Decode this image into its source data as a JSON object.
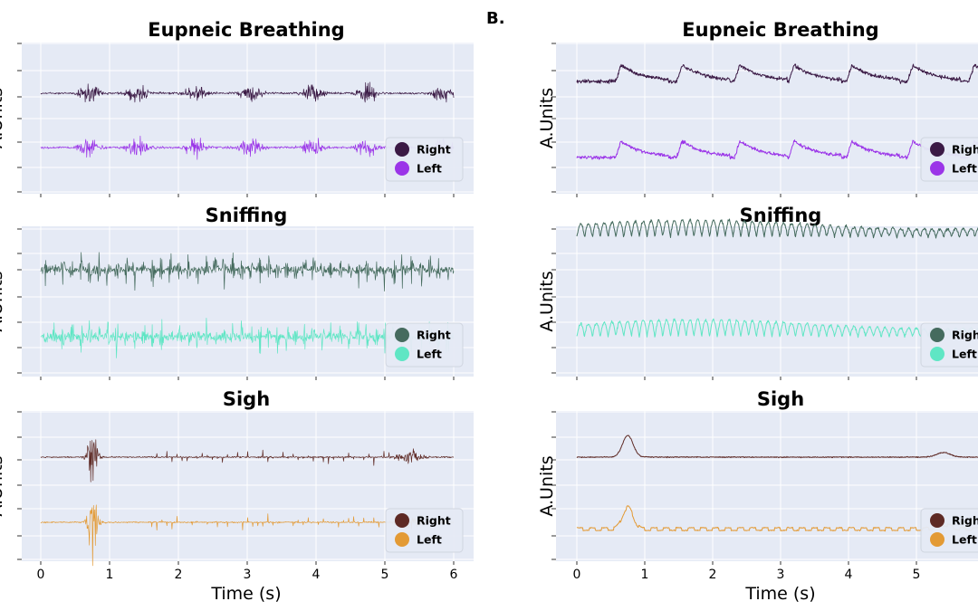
{
  "panel_labels": [
    "B."
  ],
  "chart_data": [
    {
      "type": "line",
      "col": 0,
      "row": 0,
      "title": "Eupneic Breathing",
      "ylabel": "A.Units",
      "style": "burst",
      "xlim": [
        0,
        6
      ],
      "xticks": [
        0,
        1,
        2,
        3,
        4,
        5,
        6
      ],
      "burst_centers": [
        0.7,
        1.4,
        2.25,
        3.05,
        3.95,
        4.75,
        5.85
      ],
      "series": [
        {
          "name": "Right",
          "color": "#3b1a45"
        },
        {
          "name": "Left",
          "color": "#9b35e8"
        }
      ]
    },
    {
      "type": "line",
      "col": 0,
      "row": 1,
      "title": "Sniffing",
      "ylabel": "A.Units",
      "style": "sniff",
      "xlim": [
        0,
        6
      ],
      "xticks": [
        0,
        1,
        2,
        3,
        4,
        5,
        6
      ],
      "series": [
        {
          "name": "Right",
          "color": "#456b5e"
        },
        {
          "name": "Left",
          "color": "#5fe6c4"
        }
      ]
    },
    {
      "type": "line",
      "col": 0,
      "row": 2,
      "title": "Sigh",
      "ylabel": "A.Units",
      "style": "sigh",
      "xlim": [
        0,
        6
      ],
      "xticks": [
        0,
        1,
        2,
        3,
        4,
        5,
        6
      ],
      "xlabel": "Time (s)",
      "series": [
        {
          "name": "Right",
          "color": "#5e2a25"
        },
        {
          "name": "Left",
          "color": "#e39a35"
        }
      ]
    },
    {
      "type": "line",
      "col": 1,
      "row": 0,
      "title": "Eupneic Breathing",
      "ylabel": "A.Units",
      "style": "smooth_eup",
      "xlim": [
        0,
        6
      ],
      "xticks": [
        0,
        1,
        2,
        3,
        4,
        5
      ],
      "peaks": [
        0.65,
        1.55,
        2.4,
        3.2,
        4.05,
        4.95,
        5.85
      ],
      "series": [
        {
          "name": "Right",
          "color": "#3b1a45"
        },
        {
          "name": "Left",
          "color": "#9b35e8"
        }
      ]
    },
    {
      "type": "line",
      "col": 1,
      "row": 1,
      "title": "Sniffing",
      "ylabel": "A.Units",
      "style": "smooth_sniff",
      "xlim": [
        0,
        6
      ],
      "xticks": [
        0,
        1,
        2,
        3,
        4,
        5
      ],
      "series": [
        {
          "name": "Right",
          "color": "#456b5e"
        },
        {
          "name": "Left",
          "color": "#5fe6c4"
        }
      ]
    },
    {
      "type": "line",
      "col": 1,
      "row": 2,
      "title": "Sigh",
      "ylabel": "A.Units",
      "style": "smooth_sigh",
      "xlim": [
        0,
        6
      ],
      "xticks": [
        0,
        1,
        2,
        3,
        4,
        5
      ],
      "xlabel": "Time (s)",
      "series": [
        {
          "name": "Right",
          "color": "#5e2a25"
        },
        {
          "name": "Left",
          "color": "#e39a35"
        }
      ]
    }
  ]
}
